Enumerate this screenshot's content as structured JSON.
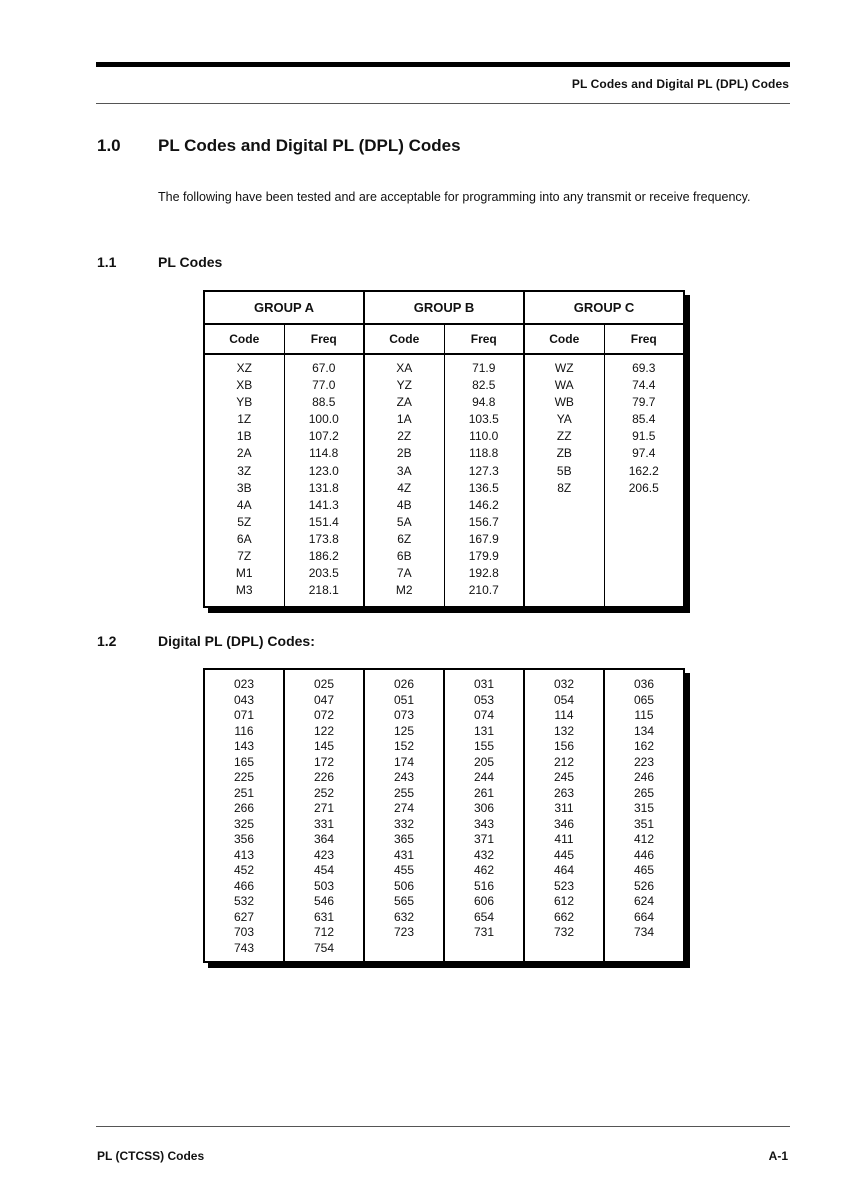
{
  "page": {
    "header_text": "PL Codes and Digital PL (DPL) Codes",
    "footer_left": "PL (CTCSS) Codes",
    "footer_right": "A-1"
  },
  "section1": {
    "number": "1.0",
    "title": "PL Codes and Digital PL (DPL) Codes",
    "body": "The following have been tested and are acceptable for programming into any transmit or receive frequency."
  },
  "section1_1": {
    "number": "1.1",
    "title": "PL Codes"
  },
  "section1_2": {
    "number": "1.2",
    "title": "Digital PL (DPL) Codes:"
  },
  "pl_table": {
    "groups": [
      "GROUP A",
      "GROUP B",
      "GROUP C"
    ],
    "col_headers": [
      "Code",
      "Freq"
    ],
    "rows": [
      [
        "XZ",
        "67.0",
        "XA",
        "71.9",
        "WZ",
        "69.3"
      ],
      [
        "XB",
        "77.0",
        "YZ",
        "82.5",
        "WA",
        "74.4"
      ],
      [
        "YB",
        "88.5",
        "ZA",
        "94.8",
        "WB",
        "79.7"
      ],
      [
        "1Z",
        "100.0",
        "1A",
        "103.5",
        "YA",
        "85.4"
      ],
      [
        "1B",
        "107.2",
        "2Z",
        "110.0",
        "ZZ",
        "91.5"
      ],
      [
        "2A",
        "114.8",
        "2B",
        "118.8",
        "ZB",
        "97.4"
      ],
      [
        "3Z",
        "123.0",
        "3A",
        "127.3",
        "5B",
        "162.2"
      ],
      [
        "3B",
        "131.8",
        "4Z",
        "136.5",
        "8Z",
        "206.5"
      ],
      [
        "4A",
        "141.3",
        "4B",
        "146.2",
        "",
        ""
      ],
      [
        "5Z",
        "151.4",
        "5A",
        "156.7",
        "",
        ""
      ],
      [
        "6A",
        "173.8",
        "6Z",
        "167.9",
        "",
        ""
      ],
      [
        "7Z",
        "186.2",
        "6B",
        "179.9",
        "",
        ""
      ],
      [
        "M1",
        "203.5",
        "7A",
        "192.8",
        "",
        ""
      ],
      [
        "M3",
        "218.1",
        "M2",
        "210.7",
        "",
        ""
      ]
    ]
  },
  "dpl_table": {
    "rows": [
      [
        "023",
        "025",
        "026",
        "031",
        "032",
        "036"
      ],
      [
        "043",
        "047",
        "051",
        "053",
        "054",
        "065"
      ],
      [
        "071",
        "072",
        "073",
        "074",
        "114",
        "115"
      ],
      [
        "116",
        "122",
        "125",
        "131",
        "132",
        "134"
      ],
      [
        "143",
        "145",
        "152",
        "155",
        "156",
        "162"
      ],
      [
        "165",
        "172",
        "174",
        "205",
        "212",
        "223"
      ],
      [
        "225",
        "226",
        "243",
        "244",
        "245",
        "246"
      ],
      [
        "251",
        "252",
        "255",
        "261",
        "263",
        "265"
      ],
      [
        "266",
        "271",
        "274",
        "306",
        "311",
        "315"
      ],
      [
        "325",
        "331",
        "332",
        "343",
        "346",
        "351"
      ],
      [
        "356",
        "364",
        "365",
        "371",
        "411",
        "412"
      ],
      [
        "413",
        "423",
        "431",
        "432",
        "445",
        "446"
      ],
      [
        "452",
        "454",
        "455",
        "462",
        "464",
        "465"
      ],
      [
        "466",
        "503",
        "506",
        "516",
        "523",
        "526"
      ],
      [
        "532",
        "546",
        "565",
        "606",
        "612",
        "624"
      ],
      [
        "627",
        "631",
        "632",
        "654",
        "662",
        "664"
      ],
      [
        "703",
        "712",
        "723",
        "731",
        "732",
        "734"
      ],
      [
        "743",
        "754",
        "",
        "",
        "",
        ""
      ]
    ]
  }
}
